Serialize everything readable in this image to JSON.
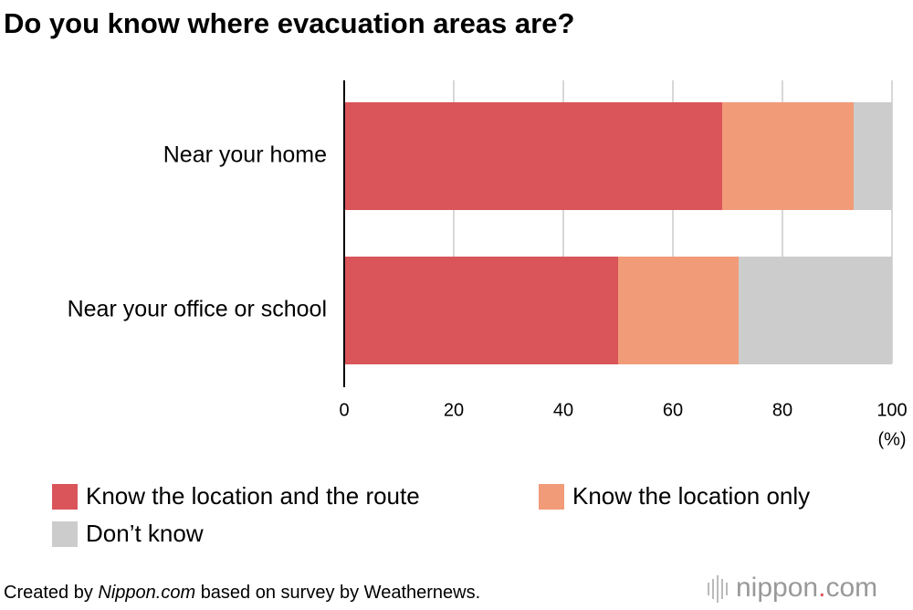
{
  "chart_data": {
    "type": "stacked-bar-horizontal",
    "title": "Do you know where evacuation areas are?",
    "categories": [
      "Near your home",
      "Near your office or school"
    ],
    "series": [
      {
        "name": "Know the location and the route",
        "color": "#d9555a",
        "values": [
          69,
          50
        ]
      },
      {
        "name": "Know the location only",
        "color": "#f19b79",
        "values": [
          24,
          22
        ]
      },
      {
        "name": "Don’t know",
        "color": "#cccccc",
        "values": [
          7,
          28
        ]
      }
    ],
    "xlim": [
      0,
      100
    ],
    "xticks": [
      0,
      20,
      40,
      60,
      80,
      100
    ],
    "x_label": "(%)",
    "grid": true,
    "source": {
      "prefix": "Created by",
      "italic": "Nippon.com",
      "suffix": "based on survey by Weathernews."
    },
    "logo": {
      "name": "nippon",
      "dot": ".",
      "suffix": "com"
    }
  }
}
